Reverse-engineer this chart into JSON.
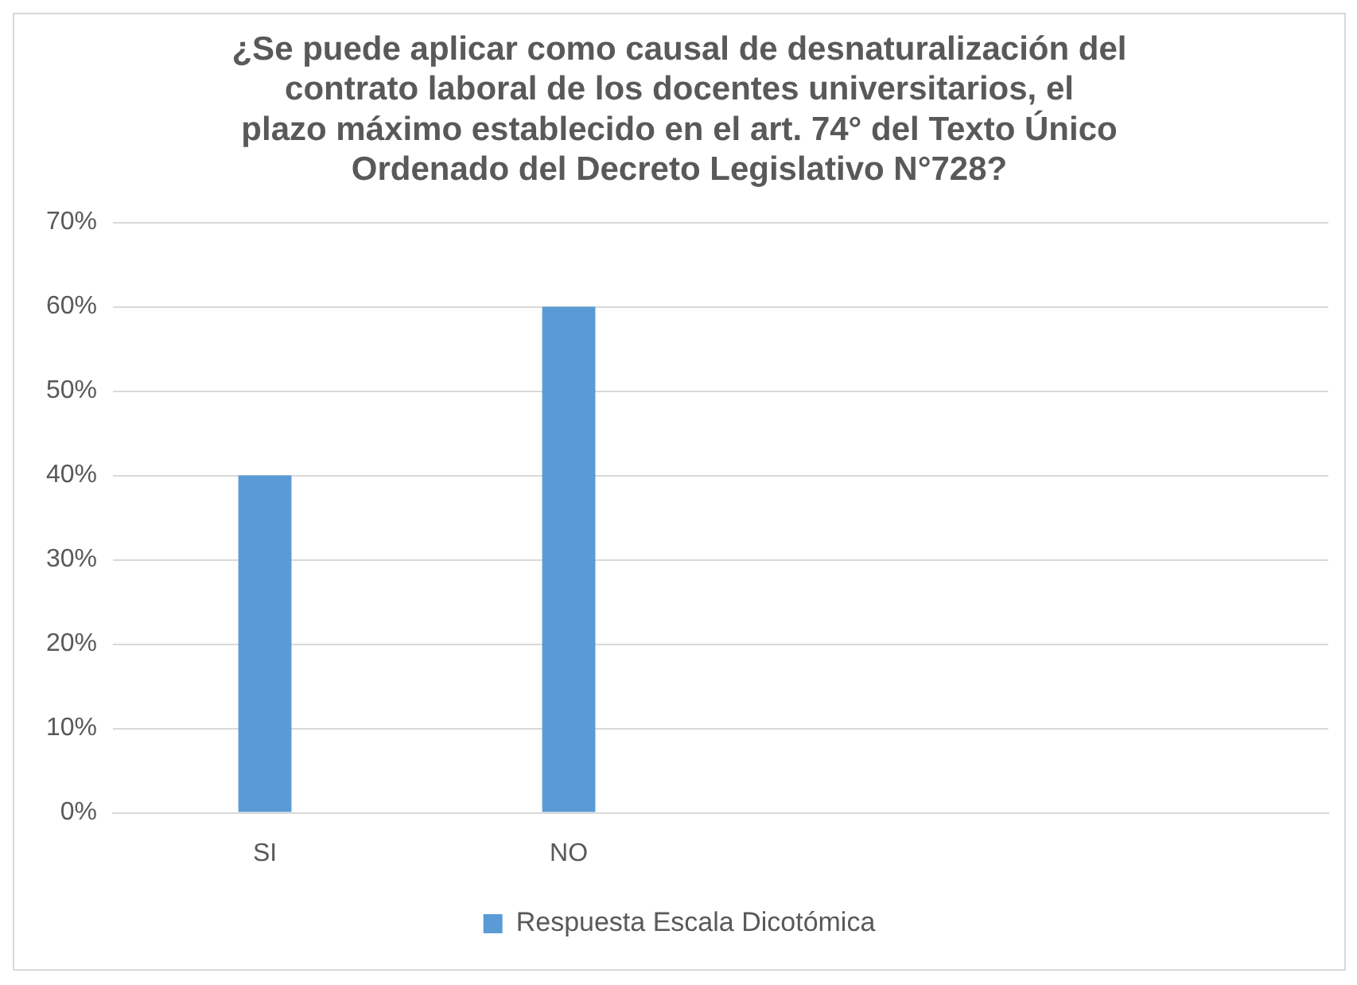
{
  "chart_data": {
    "type": "bar",
    "title": "¿Se puede aplicar como causal de desnaturalización del contrato laboral de los docentes universitarios, el plazo máximo establecido en el art. 74° del Texto Único Ordenado del Decreto Legislativo N°728?",
    "categories": [
      "SI",
      "NO",
      null,
      null
    ],
    "series": [
      {
        "name": "Respuesta Escala Dicotómica",
        "color": "#5b9bd5",
        "values": [
          40,
          60,
          null,
          null
        ]
      }
    ],
    "ylim": [
      0,
      70
    ],
    "yticks": [
      {
        "value": 0,
        "label": "0%"
      },
      {
        "value": 10,
        "label": "10%"
      },
      {
        "value": 20,
        "label": "20%"
      },
      {
        "value": 30,
        "label": "30%"
      },
      {
        "value": 40,
        "label": "40%"
      },
      {
        "value": 50,
        "label": "50%"
      },
      {
        "value": 60,
        "label": "60%"
      },
      {
        "value": 70,
        "label": "70%"
      }
    ],
    "grid": "y",
    "legend": "bottom"
  }
}
